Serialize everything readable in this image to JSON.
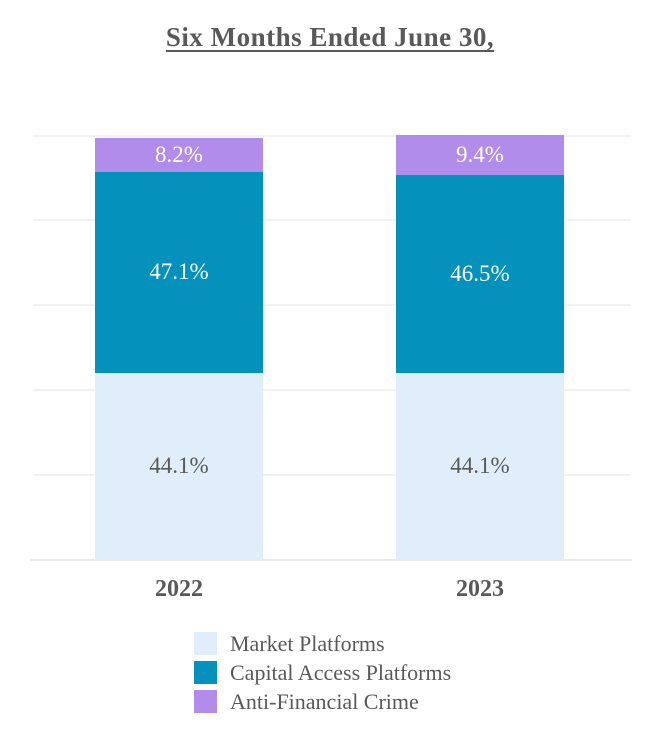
{
  "title": "Six Months Ended June 30,",
  "colors": {
    "text_gray": "#595959",
    "gridline": "#F2F2F2",
    "axis_line": "#E8E8E8"
  },
  "chart_data": {
    "type": "bar",
    "stacked": true,
    "title": "Six Months Ended June 30,",
    "categories": [
      "2022",
      "2023"
    ],
    "series": [
      {
        "name": "Market Platforms",
        "color": "#E0EDFA",
        "label_color": "#595959",
        "values": [
          44.1,
          44.1
        ],
        "labels": [
          "44.1%",
          "44.1%"
        ]
      },
      {
        "name": "Capital Access Platforms",
        "color": "#0491BC",
        "label_color": "#FFFFFF",
        "values": [
          47.1,
          46.5
        ],
        "labels": [
          "47.1%",
          "46.5%"
        ]
      },
      {
        "name": "Anti-Financial Crime",
        "color": "#B28CEA",
        "label_color": "#FFFFFF",
        "values": [
          8.2,
          9.4
        ],
        "labels": [
          "8.2%",
          "9.4%"
        ]
      }
    ],
    "ylim": [
      0,
      100
    ],
    "gridlines_percent": [
      20,
      40,
      60,
      80,
      100
    ],
    "y_axis_labels_visible": false,
    "legend_position": "bottom"
  }
}
